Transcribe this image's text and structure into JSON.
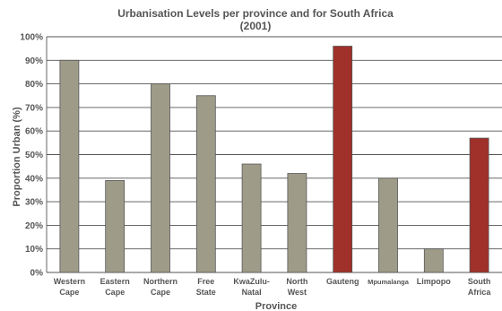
{
  "chart_data": {
    "type": "bar",
    "title": "Urbanisation Levels per province and for South Africa",
    "subtitle": "(2001)",
    "xlabel": "Province",
    "ylabel": "Proportion Urban (%)",
    "ylim": [
      0,
      100
    ],
    "yticks": [
      "0%",
      "10%",
      "20%",
      "30%",
      "40%",
      "50%",
      "60%",
      "70%",
      "80%",
      "90%",
      "100%"
    ],
    "grid": true,
    "categories": [
      [
        "Western",
        "Cape"
      ],
      [
        "Eastern",
        "Cape"
      ],
      [
        "Northern",
        "Cape"
      ],
      [
        "Free",
        "State"
      ],
      [
        "KwaZulu-",
        "Natal"
      ],
      [
        "North",
        "West"
      ],
      [
        "Gauteng"
      ],
      [
        "Mpumalanga"
      ],
      [
        "Limpopo"
      ],
      [
        "South",
        "Africa"
      ]
    ],
    "values": [
      90,
      39,
      80,
      75,
      46,
      42,
      96,
      40,
      10,
      57
    ],
    "colors": [
      "#9e9b89",
      "#9e9b89",
      "#9e9b89",
      "#9e9b89",
      "#9e9b89",
      "#9e9b89",
      "#a0302a",
      "#9e9b89",
      "#9e9b89",
      "#a0302a"
    ]
  }
}
